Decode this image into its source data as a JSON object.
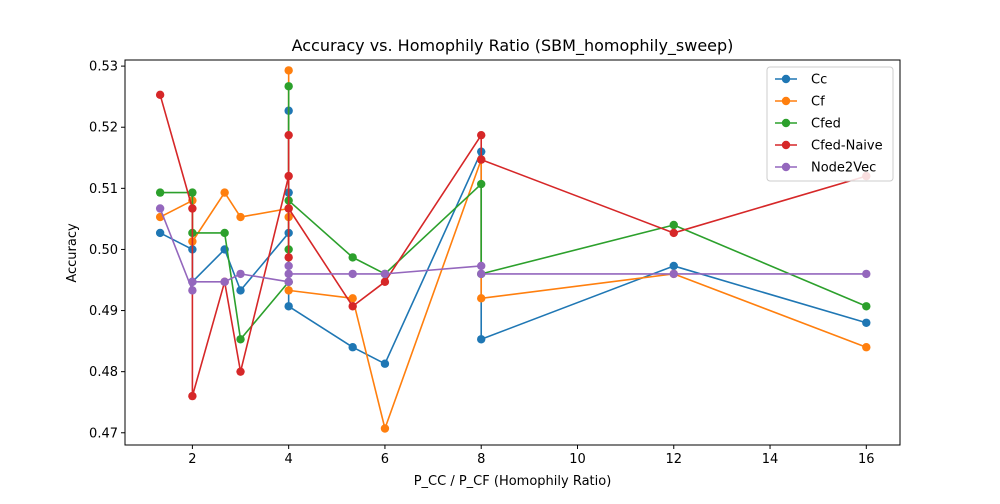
{
  "chart_data": {
    "type": "line",
    "title": "Accuracy vs. Homophily Ratio (SBM_homophily_sweep)",
    "xlabel": "P_CC / P_CF (Homophily Ratio)",
    "ylabel": "Accuracy",
    "xlim": [
      0.6,
      16.7
    ],
    "ylim": [
      0.468,
      0.531
    ],
    "xticks": [
      2,
      4,
      6,
      8,
      10,
      12,
      14,
      16
    ],
    "yticks": [
      0.47,
      0.48,
      0.49,
      0.5,
      0.51,
      0.52,
      0.53
    ],
    "ytick_labels": [
      "0.47",
      "0.48",
      "0.49",
      "0.50",
      "0.51",
      "0.52",
      "0.53"
    ],
    "grid": false,
    "legend_position": "top-right",
    "markers": "circle",
    "series": [
      {
        "name": "Cc",
        "color": "#1f77b4",
        "x": [
          1.33,
          2,
          2,
          2.67,
          3,
          4,
          4,
          4,
          4,
          5.33,
          6,
          8,
          8,
          12,
          16
        ],
        "y": [
          0.5027,
          0.5,
          0.4947,
          0.5,
          0.4933,
          0.5027,
          0.5093,
          0.5227,
          0.4907,
          0.484,
          0.4813,
          0.516,
          0.4853,
          0.4973,
          0.488
        ]
      },
      {
        "name": "Cf",
        "color": "#ff7f0e",
        "x": [
          1.33,
          2,
          2,
          2.67,
          3,
          4,
          4,
          4,
          4,
          5.33,
          6,
          8,
          8,
          12,
          16
        ],
        "y": [
          0.5053,
          0.508,
          0.5013,
          0.5093,
          0.5053,
          0.5067,
          0.5053,
          0.5293,
          0.4933,
          0.492,
          0.4707,
          0.5147,
          0.492,
          0.496,
          0.484
        ]
      },
      {
        "name": "Cfed",
        "color": "#2ca02c",
        "x": [
          1.33,
          2,
          2,
          2.67,
          3,
          4,
          4,
          4,
          4,
          5.33,
          6,
          8,
          8,
          12,
          16
        ],
        "y": [
          0.5093,
          0.5093,
          0.5027,
          0.5027,
          0.4853,
          0.4947,
          0.5,
          0.5267,
          0.508,
          0.4987,
          0.496,
          0.5107,
          0.496,
          0.504,
          0.4907
        ]
      },
      {
        "name": "Cfed-Naive",
        "color": "#d62728",
        "x": [
          1.33,
          2,
          2,
          2.67,
          3,
          4,
          4,
          4,
          4,
          5.33,
          6,
          8,
          8,
          12,
          16
        ],
        "y": [
          0.5253,
          0.5067,
          0.476,
          0.4947,
          0.48,
          0.512,
          0.4987,
          0.5187,
          0.5067,
          0.4907,
          0.4947,
          0.5187,
          0.5147,
          0.5027,
          0.512
        ]
      },
      {
        "name": "Node2Vec",
        "color": "#9467bd",
        "x": [
          1.33,
          2,
          2,
          2.67,
          3,
          4,
          4,
          4,
          4,
          5.33,
          6,
          8,
          8,
          12,
          16
        ],
        "y": [
          0.5067,
          0.4933,
          0.4947,
          0.4947,
          0.496,
          0.4947,
          0.4973,
          0.4947,
          0.496,
          0.496,
          0.496,
          0.4973,
          0.496,
          0.496,
          0.496
        ]
      }
    ]
  }
}
